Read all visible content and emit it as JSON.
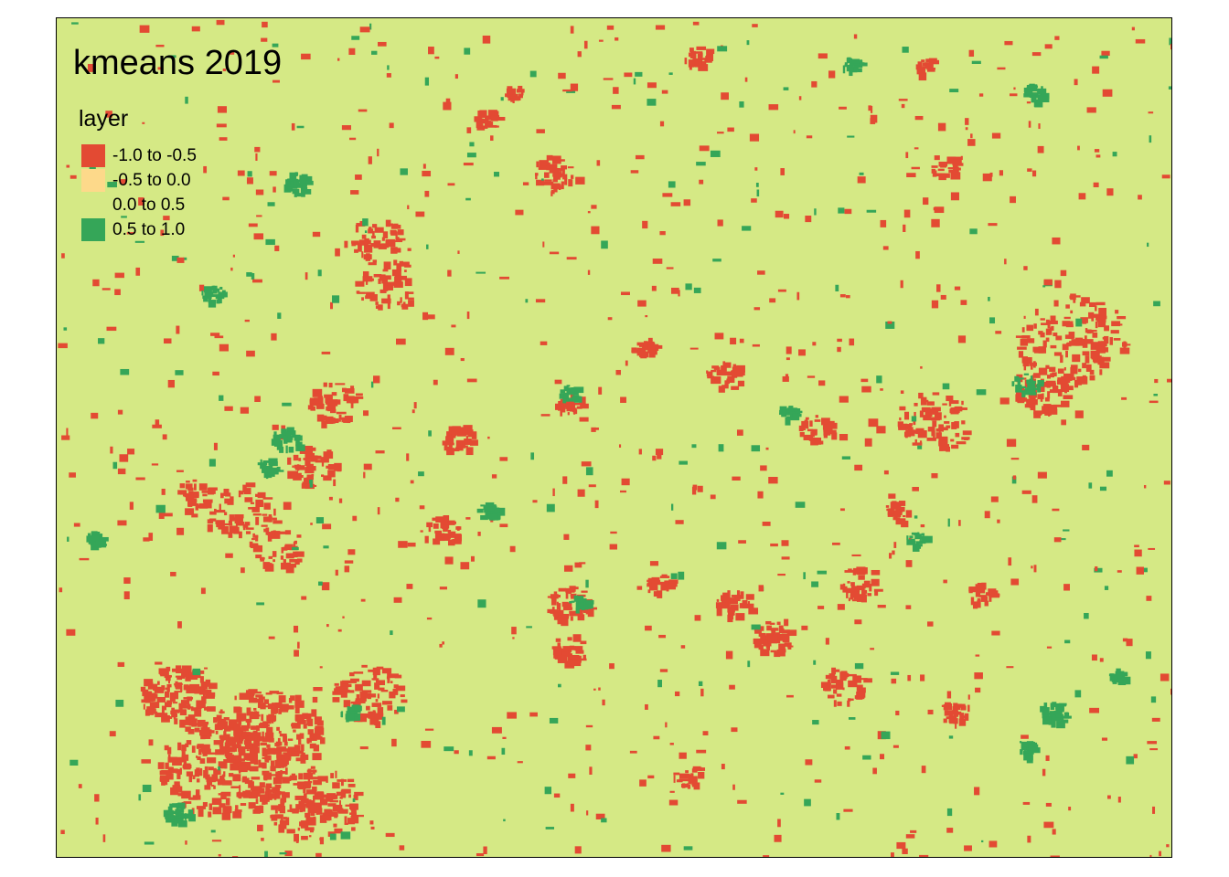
{
  "map": {
    "title": "kmeans 2019",
    "background_color": "#d5e985",
    "legend": {
      "title": "layer",
      "items": [
        {
          "label": "-1.0 to -0.5",
          "color": "#e34a33"
        },
        {
          "label": "-0.5 to 0.0",
          "color": "#fdd98a"
        },
        {
          "label": "0.0 to 0.5",
          "color": "#d5e985"
        },
        {
          "label": "0.5 to 1.0",
          "color": "#35a658"
        }
      ]
    }
  }
}
